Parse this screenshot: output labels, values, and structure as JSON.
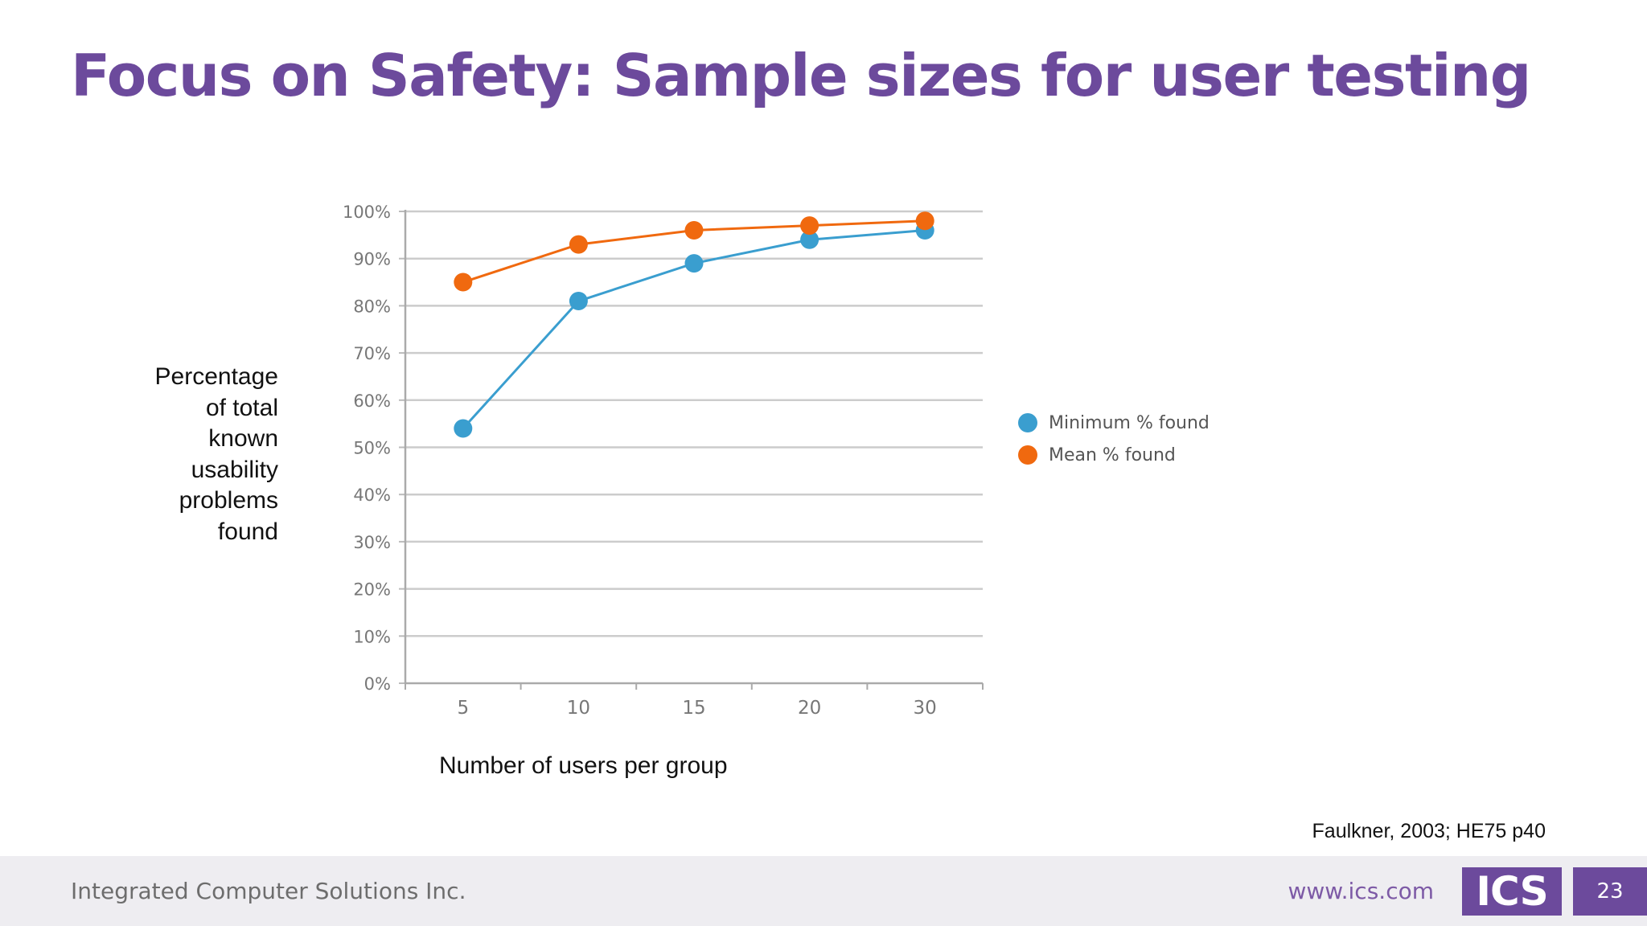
{
  "slide": {
    "title": "Focus on Safety: Sample sizes for user testing",
    "citation": "Faulkner, 2003; HE75 p40"
  },
  "footer": {
    "company": "Integrated Computer Solutions Inc.",
    "url": "www.ics.com",
    "logo_text": "ICS",
    "page_number": "23"
  },
  "colors": {
    "title": "#6c4a9c",
    "minimum_series": "#3a9ecf",
    "mean_series": "#f0690f",
    "grid": "#cccccc"
  },
  "chart_data": {
    "type": "line",
    "title": "",
    "xlabel": "Number of users per group",
    "ylabel_lines": [
      "Percentage",
      "of total",
      "known",
      "usability",
      "problems",
      "found"
    ],
    "categories": [
      "5",
      "10",
      "15",
      "20",
      "30"
    ],
    "ylim": [
      0,
      100
    ],
    "yticks": [
      0,
      10,
      20,
      30,
      40,
      50,
      60,
      70,
      80,
      90,
      100
    ],
    "ytick_labels": [
      "0%",
      "10%",
      "20%",
      "30%",
      "40%",
      "50%",
      "60%",
      "70%",
      "80%",
      "90%",
      "100%"
    ],
    "grid": true,
    "legend_position": "right",
    "series": [
      {
        "name": "Minimum % found",
        "values": [
          54,
          81,
          89,
          94,
          96
        ],
        "color": "#3a9ecf"
      },
      {
        "name": "Mean % found",
        "values": [
          85,
          93,
          96,
          97,
          98
        ],
        "color": "#f0690f"
      }
    ]
  }
}
